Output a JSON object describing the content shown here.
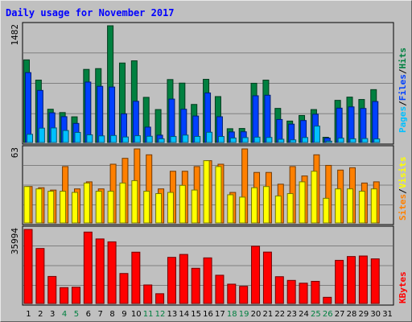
{
  "title": "Daily usage for November 2017",
  "colors": {
    "pages": "#00c0ff",
    "files": "#0040ff",
    "hits": "#008040",
    "visits": "#ffff00",
    "sites": "#ff8000",
    "kbytes": "#ff0000",
    "weekend_label": "#008040",
    "title": "#0000ff"
  },
  "legend": {
    "top": [
      "Pages",
      "/",
      "Files",
      "/",
      "Hits"
    ],
    "middle": [
      "Sites",
      "/",
      "Visits"
    ],
    "bottom": [
      "KBytes"
    ]
  },
  "days": [
    "1",
    "2",
    "3",
    "4",
    "5",
    "6",
    "7",
    "8",
    "9",
    "10",
    "11",
    "12",
    "13",
    "14",
    "15",
    "16",
    "17",
    "18",
    "19",
    "20",
    "21",
    "22",
    "23",
    "24",
    "25",
    "26",
    "27",
    "28",
    "29",
    "30",
    "31"
  ],
  "weekend_days": [
    "4",
    "5",
    "11",
    "12",
    "18",
    "19",
    "25",
    "26"
  ],
  "chart_data": [
    {
      "type": "bar",
      "name": "hits-files-pages",
      "max_label": "1482",
      "ylim": [
        0,
        1482
      ],
      "categories": [
        "1",
        "2",
        "3",
        "4",
        "5",
        "6",
        "7",
        "8",
        "9",
        "10",
        "11",
        "12",
        "13",
        "14",
        "15",
        "16",
        "17",
        "18",
        "19",
        "20",
        "21",
        "22",
        "23",
        "24",
        "25",
        "26",
        "27",
        "28",
        "29",
        "30"
      ],
      "series": [
        {
          "name": "Hits",
          "color": "#008040",
          "values": [
            1049,
            792,
            422,
            380,
            326,
            928,
            938,
            1482,
            1009,
            1037,
            573,
            418,
            799,
            754,
            483,
            802,
            583,
            175,
            178,
            752,
            792,
            433,
            272,
            343,
            418,
            66,
            535,
            576,
            546,
            671
          ]
        },
        {
          "name": "Files",
          "color": "#0040ff",
          "values": [
            887,
            661,
            377,
            328,
            242,
            767,
            713,
            704,
            364,
            523,
            195,
            93,
            551,
            422,
            336,
            629,
            327,
            134,
            136,
            593,
            600,
            292,
            233,
            279,
            359,
            56,
            436,
            452,
            432,
            520
          ]
        },
        {
          "name": "Pages",
          "color": "#00c0ff",
          "values": [
            104,
            182,
            185,
            152,
            128,
            97,
            84,
            89,
            70,
            86,
            79,
            47,
            76,
            94,
            77,
            130,
            76,
            57,
            62,
            68,
            64,
            41,
            33,
            63,
            208,
            17,
            55,
            47,
            50,
            45
          ]
        }
      ]
    },
    {
      "type": "bar",
      "name": "sites-visits",
      "max_label": "63",
      "ylim": [
        0,
        63
      ],
      "categories": [
        "1",
        "2",
        "3",
        "4",
        "5",
        "6",
        "7",
        "8",
        "9",
        "10",
        "11",
        "12",
        "13",
        "14",
        "15",
        "16",
        "17",
        "18",
        "19",
        "20",
        "21",
        "22",
        "23",
        "24",
        "25",
        "26",
        "27",
        "28",
        "29",
        "30"
      ],
      "series": [
        {
          "name": "Sites",
          "color": "#ff8000",
          "values": [
            31,
            30,
            28,
            48,
            29,
            35,
            29,
            50,
            55,
            63,
            58,
            29,
            44,
            44,
            48,
            53,
            50,
            26,
            63,
            43,
            43,
            33,
            48,
            40,
            58,
            49,
            45,
            47,
            34,
            35
          ]
        },
        {
          "name": "Visits",
          "color": "#ffff00",
          "values": [
            31,
            29,
            27,
            27,
            26,
            34,
            27,
            27,
            34,
            36,
            27,
            25,
            26,
            32,
            28,
            53,
            48,
            24,
            22,
            30,
            31,
            23,
            25,
            35,
            44,
            21,
            29,
            29,
            27,
            29
          ]
        }
      ]
    },
    {
      "type": "bar",
      "name": "kbytes",
      "max_label": "35994",
      "ylim": [
        0,
        35994
      ],
      "categories": [
        "1",
        "2",
        "3",
        "4",
        "5",
        "6",
        "7",
        "8",
        "9",
        "10",
        "11",
        "12",
        "13",
        "14",
        "15",
        "16",
        "17",
        "18",
        "19",
        "20",
        "21",
        "22",
        "23",
        "24",
        "25",
        "26",
        "27",
        "28",
        "29",
        "30"
      ],
      "series": [
        {
          "name": "KBytes",
          "color": "#ff0000",
          "values": [
            35994,
            26733,
            13142,
            7712,
            7912,
            34708,
            31370,
            29961,
            14580,
            24942,
            9010,
            4755,
            22418,
            23837,
            17109,
            22171,
            13733,
            9398,
            8344,
            27825,
            24988,
            13029,
            11223,
            9868,
            10767,
            3003,
            20973,
            22830,
            23081,
            21684
          ]
        }
      ]
    }
  ]
}
